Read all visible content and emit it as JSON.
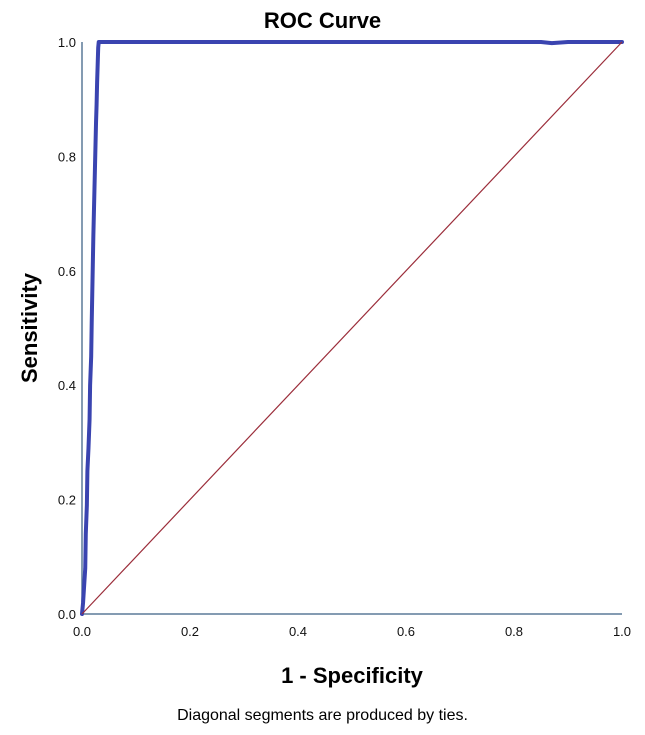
{
  "chart_data": {
    "type": "line",
    "title": "ROC Curve",
    "xlabel": "1 - Specificity",
    "ylabel": "Sensitivity",
    "footnote": "Diagonal segments are produced by ties.",
    "xlim": [
      0.0,
      1.0
    ],
    "ylim": [
      0.0,
      1.0
    ],
    "xticks": [
      "0.0",
      "0.2",
      "0.4",
      "0.6",
      "0.8",
      "1.0"
    ],
    "yticks": [
      "0.0",
      "0.2",
      "0.4",
      "0.6",
      "0.8",
      "1.0"
    ],
    "grid": false,
    "legend": "none",
    "series": [
      {
        "color": "#3a44b0",
        "style": "thick-step",
        "points": [
          [
            0.0,
            0.0
          ],
          [
            0.002,
            0.02
          ],
          [
            0.004,
            0.05
          ],
          [
            0.006,
            0.08
          ],
          [
            0.007,
            0.14
          ],
          [
            0.009,
            0.19
          ],
          [
            0.01,
            0.25
          ],
          [
            0.012,
            0.29
          ],
          [
            0.014,
            0.34
          ],
          [
            0.015,
            0.4
          ],
          [
            0.017,
            0.45
          ],
          [
            0.018,
            0.51
          ],
          [
            0.019,
            0.56
          ],
          [
            0.02,
            0.61
          ],
          [
            0.021,
            0.66
          ],
          [
            0.022,
            0.7
          ],
          [
            0.023,
            0.74
          ],
          [
            0.024,
            0.78
          ],
          [
            0.025,
            0.82
          ],
          [
            0.026,
            0.86
          ],
          [
            0.027,
            0.89
          ],
          [
            0.028,
            0.93
          ],
          [
            0.029,
            0.96
          ],
          [
            0.03,
            0.99
          ],
          [
            0.031,
            1.0
          ],
          [
            0.85,
            1.0
          ],
          [
            0.87,
            0.998
          ],
          [
            0.9,
            1.0
          ],
          [
            1.0,
            1.0
          ]
        ]
      },
      {
        "color": "#9b2d3a",
        "style": "reference-diagonal",
        "points": [
          [
            0.0,
            0.0
          ],
          [
            1.0,
            1.0
          ]
        ]
      }
    ]
  }
}
